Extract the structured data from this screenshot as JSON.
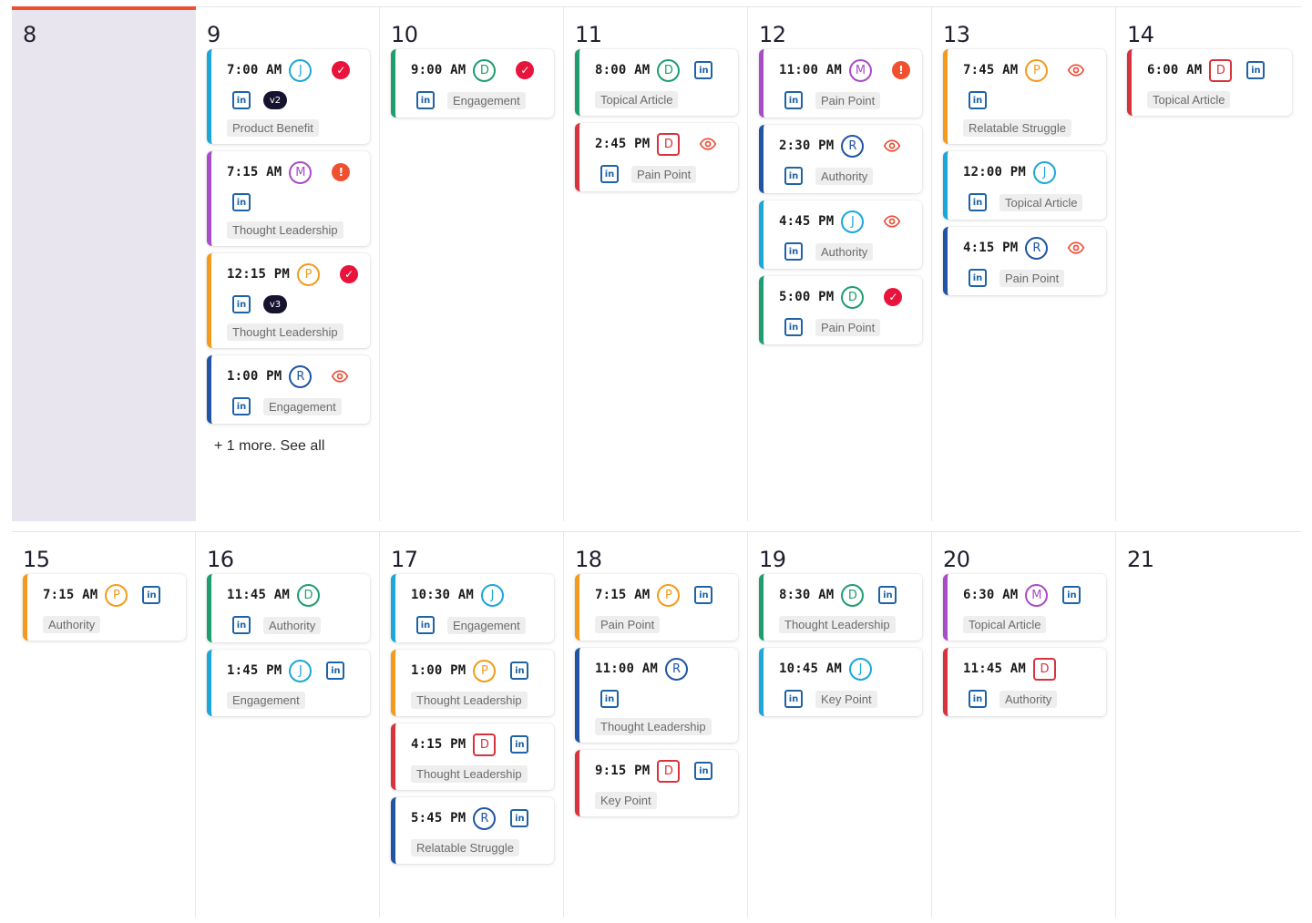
{
  "colors": {
    "blue": "#1c7fd4",
    "green": "#1e9e6e",
    "orange": "#f39b1c",
    "purple": "#a94cc8",
    "red": "#d8333d",
    "navy": "#1f55a3",
    "today": "#f04e2f"
  },
  "weeks": [
    {
      "days": [
        {
          "number": "8",
          "past": true,
          "posts": []
        },
        {
          "number": "9",
          "posts": [
            {
              "time": "7:00 AM",
              "avatar": "J",
              "avatar_color": "#1ca7d8",
              "status": "approved",
              "version": "v2",
              "tag": "Product Benefit",
              "accent": "#1ca7d8",
              "li_inline": false
            },
            {
              "time": "7:15 AM",
              "avatar": "M",
              "avatar_color": "#a94cc8",
              "status": "warning",
              "tag": "Thought Leadership",
              "accent": "#a94cc8",
              "li_inline": false
            },
            {
              "time": "12:15 PM",
              "avatar": "P",
              "avatar_color": "#f39b1c",
              "status": "approved",
              "version": "v3",
              "tag": "Thought Leadership",
              "accent": "#f39b1c",
              "li_inline": false
            },
            {
              "time": "1:00 PM",
              "avatar": "R",
              "avatar_color": "#1f55a3",
              "status": "review",
              "tag": "Engagement",
              "accent": "#1f55a3",
              "li_inline": false,
              "tag_inline": true
            }
          ],
          "more": "+ 1 more. See all"
        },
        {
          "number": "10",
          "posts": [
            {
              "time": "9:00 AM",
              "avatar": "D",
              "avatar_color": "#1e9e6e",
              "status": "approved",
              "tag": "Engagement",
              "accent": "#1e9e6e",
              "li_inline": false,
              "tag_inline": true
            }
          ]
        },
        {
          "number": "11",
          "posts": [
            {
              "time": "8:00 AM",
              "avatar": "D",
              "avatar_color": "#1e9e6e",
              "tag": "Topical Article",
              "accent": "#1e9e6e",
              "li_inline": true
            },
            {
              "time": "2:45 PM",
              "avatar": "D",
              "avatar_color": "#d8333d",
              "square": true,
              "status": "review",
              "tag": "Pain Point",
              "accent": "#d8333d",
              "li_inline": false,
              "tag_inline": true
            }
          ]
        },
        {
          "number": "12",
          "posts": [
            {
              "time": "11:00 AM",
              "avatar": "M",
              "avatar_color": "#a94cc8",
              "status": "warning",
              "tag": "Pain Point",
              "accent": "#a94cc8",
              "li_inline": false,
              "tag_inline": true
            },
            {
              "time": "2:30 PM",
              "avatar": "R",
              "avatar_color": "#1f55a3",
              "status": "review",
              "tag": "Authority",
              "accent": "#1f55a3",
              "li_inline": false,
              "tag_inline": true
            },
            {
              "time": "4:45 PM",
              "avatar": "J",
              "avatar_color": "#1ca7d8",
              "status": "review",
              "tag": "Authority",
              "accent": "#1ca7d8",
              "li_inline": false,
              "tag_inline": true
            },
            {
              "time": "5:00 PM",
              "avatar": "D",
              "avatar_color": "#1e9e6e",
              "status": "approved",
              "tag": "Pain Point",
              "accent": "#1e9e6e",
              "li_inline": false,
              "tag_inline": true
            }
          ]
        },
        {
          "number": "13",
          "posts": [
            {
              "time": "7:45 AM",
              "avatar": "P",
              "avatar_color": "#f39b1c",
              "status": "review",
              "tag": "Relatable Struggle",
              "accent": "#f39b1c",
              "li_inline": false
            },
            {
              "time": "12:00 PM",
              "avatar": "J",
              "avatar_color": "#1ca7d8",
              "tag": "Topical Article",
              "accent": "#1ca7d8",
              "li_inline": false,
              "tag_inline": true
            },
            {
              "time": "4:15 PM",
              "avatar": "R",
              "avatar_color": "#1f55a3",
              "status": "review",
              "tag": "Pain Point",
              "accent": "#1f55a3",
              "li_inline": false,
              "tag_inline": true
            }
          ]
        },
        {
          "number": "14",
          "posts": [
            {
              "time": "6:00 AM",
              "avatar": "D",
              "avatar_color": "#d8333d",
              "square": true,
              "tag": "Topical Article",
              "accent": "#d8333d",
              "li_inline": true
            }
          ]
        }
      ]
    },
    {
      "days": [
        {
          "number": "15",
          "posts": [
            {
              "time": "7:15 AM",
              "avatar": "P",
              "avatar_color": "#f39b1c",
              "tag": "Authority",
              "accent": "#f39b1c",
              "li_inline": true
            }
          ]
        },
        {
          "number": "16",
          "posts": [
            {
              "time": "11:45 AM",
              "avatar": "D",
              "avatar_color": "#1e9e6e",
              "tag": "Authority",
              "accent": "#1e9e6e",
              "li_inline": false,
              "tag_inline": true
            },
            {
              "time": "1:45 PM",
              "avatar": "J",
              "avatar_color": "#1ca7d8",
              "tag": "Engagement",
              "accent": "#1ca7d8",
              "li_inline": true
            }
          ]
        },
        {
          "number": "17",
          "posts": [
            {
              "time": "10:30 AM",
              "avatar": "J",
              "avatar_color": "#1ca7d8",
              "tag": "Engagement",
              "accent": "#1ca7d8",
              "li_inline": false,
              "tag_inline": true
            },
            {
              "time": "1:00 PM",
              "avatar": "P",
              "avatar_color": "#f39b1c",
              "tag": "Thought Leadership",
              "accent": "#f39b1c",
              "li_inline": true
            },
            {
              "time": "4:15 PM",
              "avatar": "D",
              "avatar_color": "#d8333d",
              "square": true,
              "tag": "Thought Leadership",
              "accent": "#d8333d",
              "li_inline": true
            },
            {
              "time": "5:45 PM",
              "avatar": "R",
              "avatar_color": "#1f55a3",
              "tag": "Relatable Struggle",
              "accent": "#1f55a3",
              "li_inline": true
            }
          ]
        },
        {
          "number": "18",
          "posts": [
            {
              "time": "7:15 AM",
              "avatar": "P",
              "avatar_color": "#f39b1c",
              "tag": "Pain Point",
              "accent": "#f39b1c",
              "li_inline": true
            },
            {
              "time": "11:00 AM",
              "avatar": "R",
              "avatar_color": "#1f55a3",
              "tag": "Thought Leadership",
              "accent": "#1f55a3",
              "li_inline": false
            },
            {
              "time": "9:15 PM",
              "avatar": "D",
              "avatar_color": "#d8333d",
              "square": true,
              "tag": "Key Point",
              "accent": "#d8333d",
              "li_inline": true
            }
          ]
        },
        {
          "number": "19",
          "posts": [
            {
              "time": "8:30 AM",
              "avatar": "D",
              "avatar_color": "#1e9e6e",
              "tag": "Thought Leadership",
              "accent": "#1e9e6e",
              "li_inline": true
            },
            {
              "time": "10:45 AM",
              "avatar": "J",
              "avatar_color": "#1ca7d8",
              "tag": "Key Point",
              "accent": "#1ca7d8",
              "li_inline": false,
              "tag_inline": true
            }
          ]
        },
        {
          "number": "20",
          "posts": [
            {
              "time": "6:30 AM",
              "avatar": "M",
              "avatar_color": "#a94cc8",
              "tag": "Topical Article",
              "accent": "#a94cc8",
              "li_inline": true
            },
            {
              "time": "11:45 AM",
              "avatar": "D",
              "avatar_color": "#d8333d",
              "square": true,
              "tag": "Authority",
              "accent": "#d8333d",
              "li_inline": false,
              "tag_inline": true
            }
          ]
        },
        {
          "number": "21",
          "posts": []
        }
      ]
    }
  ]
}
